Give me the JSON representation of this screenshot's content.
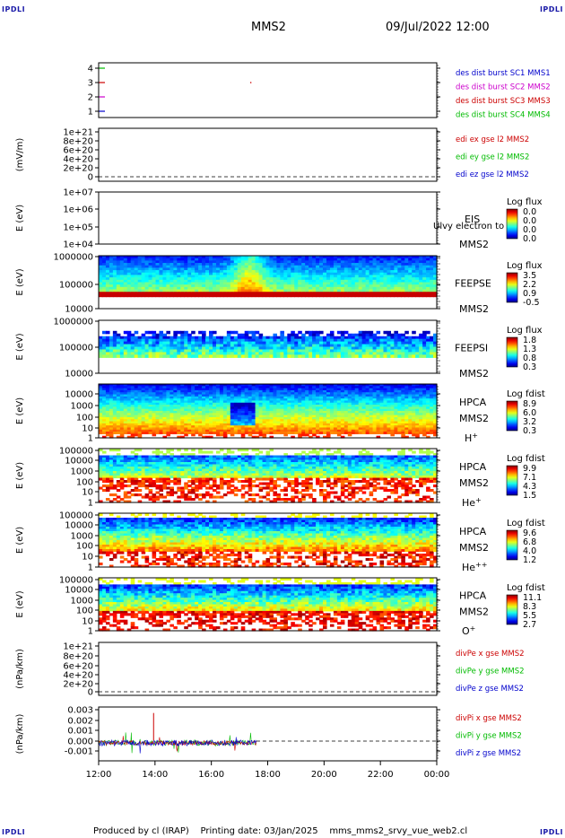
{
  "corner_label": "IPDLI",
  "header": {
    "spacecraft": "MMS2",
    "datetime": "09/Jul/2022 12:00"
  },
  "footer": {
    "produced_by": "Produced by cl (IRAP)",
    "printing_date": "Printing date: 03/Jan/2025",
    "filename": "mms_mms2_srvy_vue_web2.cl"
  },
  "x_axis": {
    "tick_labels": [
      "12:00",
      "14:00",
      "16:00",
      "18:00",
      "20:00",
      "22:00",
      "00:00"
    ],
    "data_end_hour": 17.6
  },
  "panels": [
    {
      "id": "burst",
      "ytick_labels": [
        "4",
        "3",
        "2",
        "1"
      ],
      "ylabel": "",
      "legend": [
        {
          "text": "des dist burst SC1 MMS1",
          "color": "#0000cc"
        },
        {
          "text": "des dist burst SC2 MMS2",
          "color": "#cc00cc"
        },
        {
          "text": "des dist burst SC3 MMS3",
          "color": "#cc0000"
        },
        {
          "text": "des dist burst SC4 MMS4",
          "color": "#00bb00"
        }
      ]
    },
    {
      "id": "edi",
      "ytick_labels": [
        "1e+21",
        "8e+20",
        "6e+20",
        "4e+20",
        "2e+20",
        "0"
      ],
      "ylabel": "(mV/m)",
      "legend": [
        {
          "text": "edi ex gse l2 MMS2",
          "color": "#cc0000"
        },
        {
          "text": "edi ey gse l2 MMS2",
          "color": "#00bb00"
        },
        {
          "text": "edi ez gse l2 MMS2",
          "color": "#0000cc"
        }
      ]
    },
    {
      "id": "eis",
      "ytick_labels": [
        "1e+07",
        "1e+06",
        "1e+05",
        "1e+04"
      ],
      "ylabel": "E (eV)",
      "labels": [
        "EIS",
        "MMS2"
      ],
      "overlay_text": "Ulvy electron to",
      "cbar_title": "Log flux",
      "cbar_ticks": [
        "0.0",
        "0.0",
        "0.0",
        "0.0"
      ]
    },
    {
      "id": "feepse",
      "ytick_labels": [
        "1000000",
        "100000",
        "10000"
      ],
      "ylabel": "E (eV)",
      "labels": [
        "FEEPSE",
        "MMS2"
      ],
      "cbar_title": "Log flux",
      "cbar_ticks": [
        "3.5",
        "2.2",
        "0.9",
        "-0.5"
      ]
    },
    {
      "id": "feepsi",
      "ytick_labels": [
        "1000000",
        "100000",
        "10000"
      ],
      "ylabel": "E (eV)",
      "labels": [
        "FEEPSI",
        "MMS2"
      ],
      "cbar_title": "Log flux",
      "cbar_ticks": [
        "1.8",
        "1.3",
        "0.8",
        "0.3"
      ]
    },
    {
      "id": "hpca_h",
      "ytick_labels": [
        "10000",
        "1000",
        "100",
        "10",
        "1"
      ],
      "ylabel": "E (eV)",
      "labels": [
        "HPCA",
        "MMS2"
      ],
      "species": "H",
      "species_sup": "+",
      "cbar_title": "Log fdist",
      "cbar_ticks": [
        "8.9",
        "6.0",
        "3.2",
        "0.3"
      ]
    },
    {
      "id": "hpca_he",
      "ytick_labels": [
        "100000",
        "10000",
        "1000",
        "100",
        "10",
        "1"
      ],
      "ylabel": "E (eV)",
      "labels": [
        "HPCA",
        "MMS2"
      ],
      "species": "He",
      "species_sup": "+",
      "cbar_title": "Log fdist",
      "cbar_ticks": [
        "9.9",
        "7.1",
        "4.3",
        "1.5"
      ]
    },
    {
      "id": "hpca_hepp",
      "ytick_labels": [
        "100000",
        "10000",
        "1000",
        "100",
        "10",
        "1"
      ],
      "ylabel": "E (eV)",
      "labels": [
        "HPCA",
        "MMS2"
      ],
      "species": "He",
      "species_sup": "++",
      "cbar_title": "Log fdist",
      "cbar_ticks": [
        "9.6",
        "6.8",
        "4.0",
        "1.2"
      ]
    },
    {
      "id": "hpca_o",
      "ytick_labels": [
        "100000",
        "10000",
        "1000",
        "100",
        "10",
        "1"
      ],
      "ylabel": "E (eV)",
      "labels": [
        "HPCA",
        "MMS2"
      ],
      "species": "O",
      "species_sup": "+",
      "cbar_title": "Log fdist",
      "cbar_ticks": [
        "11.1",
        "8.3",
        "5.5",
        "2.7"
      ]
    },
    {
      "id": "divpe",
      "ytick_labels": [
        "1e+21",
        "8e+20",
        "6e+20",
        "4e+20",
        "2e+20",
        "0"
      ],
      "ylabel": "(nPa/km)",
      "legend": [
        {
          "text": "divPe x gse MMS2",
          "color": "#cc0000"
        },
        {
          "text": "divPe y gse MMS2",
          "color": "#00bb00"
        },
        {
          "text": "divPe z gse MMS2",
          "color": "#0000cc"
        }
      ]
    },
    {
      "id": "divpi",
      "ytick_labels": [
        "0.003",
        "0.002",
        "0.001",
        "0.000",
        "-0.001"
      ],
      "ylabel": "(nPa/km)",
      "legend": [
        {
          "text": "divPi x gse MMS2",
          "color": "#cc0000"
        },
        {
          "text": "divPi y gse MMS2",
          "color": "#00bb00"
        },
        {
          "text": "divPi z gse MMS2",
          "color": "#0000cc"
        }
      ]
    }
  ],
  "chart_data": {
    "type": "heatmap",
    "title": "MMS2",
    "x": {
      "label": "",
      "range_hours": [
        12,
        24
      ],
      "ticks": [
        "12:00",
        "14:00",
        "16:00",
        "18:00",
        "20:00",
        "22:00",
        "00:00"
      ]
    },
    "panels": [
      "burst",
      "edi",
      "eis",
      "feepse",
      "feepsi",
      "hpca_h",
      "hpca_he",
      "hpca_hepp",
      "hpca_o",
      "divpe",
      "divpi"
    ],
    "divpi_ylim": [
      -0.0015,
      0.003
    ]
  }
}
